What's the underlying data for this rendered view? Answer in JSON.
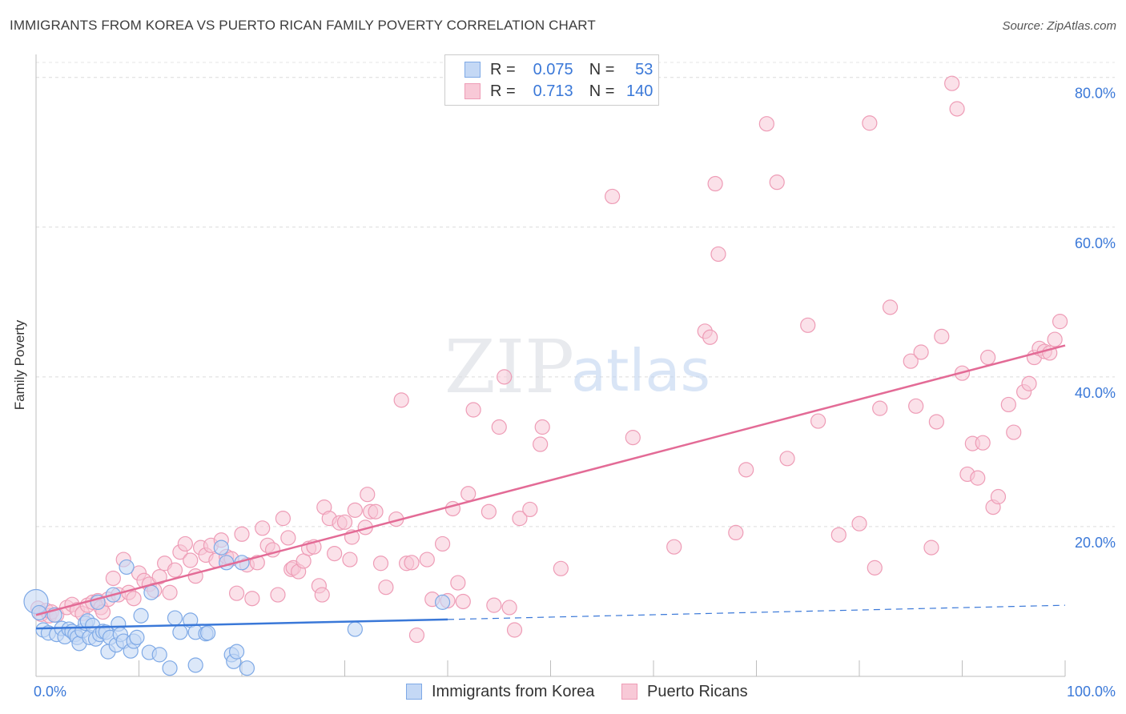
{
  "header": {
    "title": "IMMIGRANTS FROM KOREA VS PUERTO RICAN FAMILY POVERTY CORRELATION CHART",
    "source": "Source: ZipAtlas.com"
  },
  "colors": {
    "korea_fill": "#c4d8f5",
    "korea_stroke": "#7ea9e6",
    "korea_line": "#3a78d8",
    "pr_fill": "#f8c9d7",
    "pr_stroke": "#ee9cb6",
    "pr_line": "#e36b96",
    "accent_text": "#3a78d8"
  },
  "legend": {
    "rows": [
      {
        "r_label": "R =",
        "r_value": "0.075",
        "n_label": "N =",
        "n_value": "53"
      },
      {
        "r_label": "R =",
        "r_value": "0.713",
        "n_label": "N =",
        "n_value": "140"
      }
    ]
  },
  "bottom_legend": {
    "korea": "Immigrants from Korea",
    "pr": "Puerto Ricans"
  },
  "watermark": {
    "zip": "ZIP",
    "atlas": "atlas"
  },
  "chart_data": {
    "type": "scatter",
    "title": "IMMIGRANTS FROM KOREA VS PUERTO RICAN FAMILY POVERTY CORRELATION CHART",
    "xlabel": "",
    "ylabel": "Family Poverty",
    "xlim": [
      0,
      100
    ],
    "ylim": [
      0,
      82
    ],
    "x_tick_labels": [
      {
        "value": 0,
        "label": "0.0%"
      },
      {
        "value": 100,
        "label": "100.0%"
      }
    ],
    "y_tick_labels": [
      {
        "value": 20,
        "label": "20.0%"
      },
      {
        "value": 40,
        "label": "40.0%"
      },
      {
        "value": 60,
        "label": "60.0%"
      },
      {
        "value": 80,
        "label": "80.0%"
      }
    ],
    "grid": true,
    "series": [
      {
        "name": "Immigrants from Korea",
        "R": 0.075,
        "N": 53,
        "trend": {
          "x0": 0,
          "y0": 6.4,
          "x1": 40,
          "y1": 7.6,
          "dash_x1": 100,
          "dash_y1": 9.5
        },
        "points": [
          [
            0,
            10
          ],
          [
            0.3,
            8.5
          ],
          [
            0.7,
            6.2
          ],
          [
            1.2,
            5.8
          ],
          [
            1.8,
            8.2
          ],
          [
            2,
            5.6
          ],
          [
            2.5,
            6.4
          ],
          [
            2.8,
            5.3
          ],
          [
            3.2,
            6.3
          ],
          [
            3.5,
            6
          ],
          [
            3.8,
            5.6
          ],
          [
            4,
            5.2
          ],
          [
            4.2,
            4.4
          ],
          [
            4.5,
            6.1
          ],
          [
            4.8,
            7.1
          ],
          [
            5,
            7.4
          ],
          [
            5.2,
            5.2
          ],
          [
            5.5,
            6.8
          ],
          [
            5.8,
            5
          ],
          [
            6,
            9.9
          ],
          [
            6.2,
            5.6
          ],
          [
            6.5,
            6
          ],
          [
            6.8,
            5.9
          ],
          [
            7,
            3.3
          ],
          [
            7.2,
            5.2
          ],
          [
            7.5,
            10.9
          ],
          [
            7.8,
            4.2
          ],
          [
            8,
            7
          ],
          [
            8.2,
            5.6
          ],
          [
            8.5,
            4.7
          ],
          [
            8.8,
            14.6
          ],
          [
            9.2,
            3.4
          ],
          [
            9.5,
            4.7
          ],
          [
            9.8,
            5.2
          ],
          [
            10.2,
            8.1
          ],
          [
            11,
            3.2
          ],
          [
            11.2,
            11.2
          ],
          [
            12,
            2.9
          ],
          [
            13,
            1.1
          ],
          [
            13.5,
            7.8
          ],
          [
            14,
            5.9
          ],
          [
            15,
            7.5
          ],
          [
            15.5,
            1.5
          ],
          [
            15.5,
            5.9
          ],
          [
            16.5,
            5.7
          ],
          [
            16.7,
            5.8
          ],
          [
            18,
            17.2
          ],
          [
            18.5,
            15.2
          ],
          [
            19,
            2.9
          ],
          [
            19.2,
            2
          ],
          [
            19.5,
            3.3
          ],
          [
            20,
            15.2
          ],
          [
            20.5,
            1.1
          ],
          [
            31,
            6.3
          ],
          [
            39.5,
            9.9
          ]
        ]
      },
      {
        "name": "Puerto Ricans",
        "R": 0.713,
        "N": 140,
        "trend": {
          "x0": 0,
          "y0": 8.2,
          "x1": 100,
          "y1": 44.2
        },
        "points": [
          [
            0.2,
            9.1
          ],
          [
            0.5,
            8.3
          ],
          [
            1,
            8.8
          ],
          [
            1.3,
            8.1
          ],
          [
            1.5,
            8.6
          ],
          [
            2,
            8.2
          ],
          [
            3,
            9.2
          ],
          [
            3.5,
            9.6
          ],
          [
            4,
            8.9
          ],
          [
            4.5,
            8.4
          ],
          [
            5,
            9.5
          ],
          [
            5.5,
            9.9
          ],
          [
            6,
            10.1
          ],
          [
            6.3,
            9.2
          ],
          [
            6.5,
            8.6
          ],
          [
            7,
            10.3
          ],
          [
            7.5,
            13.1
          ],
          [
            8,
            10.9
          ],
          [
            8.5,
            15.6
          ],
          [
            9,
            11.2
          ],
          [
            9.5,
            10.4
          ],
          [
            10,
            13.8
          ],
          [
            10.5,
            12.8
          ],
          [
            11,
            12.3
          ],
          [
            11.5,
            11.5
          ],
          [
            12,
            13.3
          ],
          [
            12.5,
            15.1
          ],
          [
            13,
            11.2
          ],
          [
            13.5,
            14.2
          ],
          [
            14,
            16.6
          ],
          [
            14.5,
            17.7
          ],
          [
            15,
            15.5
          ],
          [
            15.5,
            13.4
          ],
          [
            16,
            17.2
          ],
          [
            16.5,
            16.2
          ],
          [
            17,
            17.5
          ],
          [
            17.5,
            15.5
          ],
          [
            18,
            18.2
          ],
          [
            18.5,
            16
          ],
          [
            19,
            15.7
          ],
          [
            19.5,
            11.1
          ],
          [
            20,
            19
          ],
          [
            20.5,
            14.9
          ],
          [
            21,
            10.4
          ],
          [
            21.5,
            15.2
          ],
          [
            22,
            19.8
          ],
          [
            22.5,
            17.5
          ],
          [
            23,
            16.9
          ],
          [
            23.5,
            10.9
          ],
          [
            24,
            21.1
          ],
          [
            24.5,
            18.5
          ],
          [
            24.8,
            14.3
          ],
          [
            25,
            14.5
          ],
          [
            25.5,
            14
          ],
          [
            26,
            15.4
          ],
          [
            26.5,
            17.1
          ],
          [
            27,
            17.3
          ],
          [
            27.5,
            12.1
          ],
          [
            27.8,
            10.9
          ],
          [
            28,
            22.6
          ],
          [
            28.5,
            21.1
          ],
          [
            29,
            16.4
          ],
          [
            29.5,
            20.5
          ],
          [
            30,
            20.6
          ],
          [
            30.5,
            15.6
          ],
          [
            30.7,
            18.6
          ],
          [
            31,
            22.2
          ],
          [
            32,
            19.9
          ],
          [
            32.2,
            24.3
          ],
          [
            32.5,
            22
          ],
          [
            33,
            22
          ],
          [
            33.5,
            15.1
          ],
          [
            34,
            11.9
          ],
          [
            35,
            21
          ],
          [
            35.5,
            36.9
          ],
          [
            36,
            15.1
          ],
          [
            36.5,
            15.2
          ],
          [
            37,
            5.5
          ],
          [
            38,
            15.6
          ],
          [
            38.5,
            10.3
          ],
          [
            39.5,
            17.7
          ],
          [
            40,
            10.1
          ],
          [
            40.5,
            22.4
          ],
          [
            41,
            12.5
          ],
          [
            41.5,
            10
          ],
          [
            42,
            24.4
          ],
          [
            42.5,
            35.6
          ],
          [
            44,
            22
          ],
          [
            44.5,
            9.5
          ],
          [
            45,
            33.3
          ],
          [
            45.5,
            40
          ],
          [
            46,
            9.2
          ],
          [
            46.5,
            6.2
          ],
          [
            47,
            21.1
          ],
          [
            48,
            22.3
          ],
          [
            49,
            31
          ],
          [
            49.2,
            33.3
          ],
          [
            51,
            14.4
          ],
          [
            56,
            64.1
          ],
          [
            58,
            31.9
          ],
          [
            62,
            17.3
          ],
          [
            65,
            46.1
          ],
          [
            65.5,
            45.3
          ],
          [
            66,
            65.8
          ],
          [
            66.3,
            56.4
          ],
          [
            68,
            19.2
          ],
          [
            69,
            27.6
          ],
          [
            71,
            73.8
          ],
          [
            72,
            66
          ],
          [
            73,
            29.1
          ],
          [
            75,
            46.9
          ],
          [
            76,
            34.1
          ],
          [
            78,
            18.9
          ],
          [
            80,
            20.4
          ],
          [
            81,
            73.9
          ],
          [
            81.5,
            14.5
          ],
          [
            82,
            35.8
          ],
          [
            83,
            49.3
          ],
          [
            85,
            42.1
          ],
          [
            85.5,
            36.1
          ],
          [
            86,
            43.3
          ],
          [
            87,
            17.2
          ],
          [
            87.5,
            34
          ],
          [
            88,
            45.4
          ],
          [
            89,
            79.2
          ],
          [
            89.5,
            75.8
          ],
          [
            90,
            40.5
          ],
          [
            90.5,
            27
          ],
          [
            91,
            31.1
          ],
          [
            91.5,
            26.5
          ],
          [
            92,
            31.2
          ],
          [
            92.5,
            42.6
          ],
          [
            93,
            22.6
          ],
          [
            93.5,
            24
          ],
          [
            94.5,
            36.3
          ],
          [
            95,
            32.6
          ],
          [
            96,
            38
          ],
          [
            96.5,
            39.1
          ],
          [
            97,
            42.6
          ],
          [
            97.5,
            43.8
          ],
          [
            98,
            43.4
          ],
          [
            98.5,
            43.2
          ],
          [
            99,
            45
          ],
          [
            99.5,
            47.4
          ]
        ]
      }
    ]
  }
}
